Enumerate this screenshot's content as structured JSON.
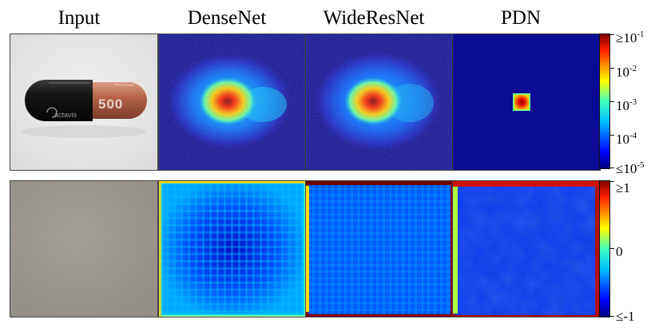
{
  "columns": [
    "Input",
    "DenseNet",
    "WideResNet",
    "PDN"
  ],
  "top_colorbar": {
    "ticks": [
      {
        "pre": "≥",
        "base": "10",
        "exp": "-1"
      },
      {
        "pre": "",
        "base": "10",
        "exp": "-2"
      },
      {
        "pre": "",
        "base": "10",
        "exp": "-3"
      },
      {
        "pre": "",
        "base": "10",
        "exp": "-4"
      },
      {
        "pre": "≤",
        "base": "10",
        "exp": "-5"
      }
    ]
  },
  "bottom_colorbar": {
    "ticks": [
      {
        "pre": "≥",
        "base": "1",
        "exp": ""
      },
      {
        "pre": "",
        "base": "0",
        "exp": ""
      },
      {
        "pre": "≤",
        "base": "-1",
        "exp": ""
      }
    ]
  },
  "capsule_text": {
    "number": "500",
    "brand": "actavis"
  },
  "colors": {
    "colormap": [
      "#00007f",
      "#0000ff",
      "#00bfff",
      "#40ffbf",
      "#ffff00",
      "#ff4000",
      "#7f0000"
    ],
    "map_background": "#0b0b94"
  }
}
